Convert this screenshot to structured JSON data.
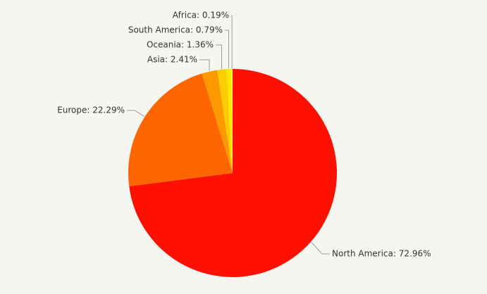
{
  "chart_data": {
    "type": "pie",
    "values": [
      72.96,
      22.29,
      2.41,
      1.36,
      0.79,
      0.19
    ],
    "value_labels": [
      "North America: 72.96%",
      "Europe: 22.29%",
      "Asia: 2.41%",
      "Oceania: 1.36%",
      "South America: 0.79%",
      "Africa: 0.19%"
    ],
    "colors": [
      "#ff1100",
      "#ff6600",
      "#ff9900",
      "#ffcc00",
      "#ffe600",
      "#ffff33"
    ]
  }
}
